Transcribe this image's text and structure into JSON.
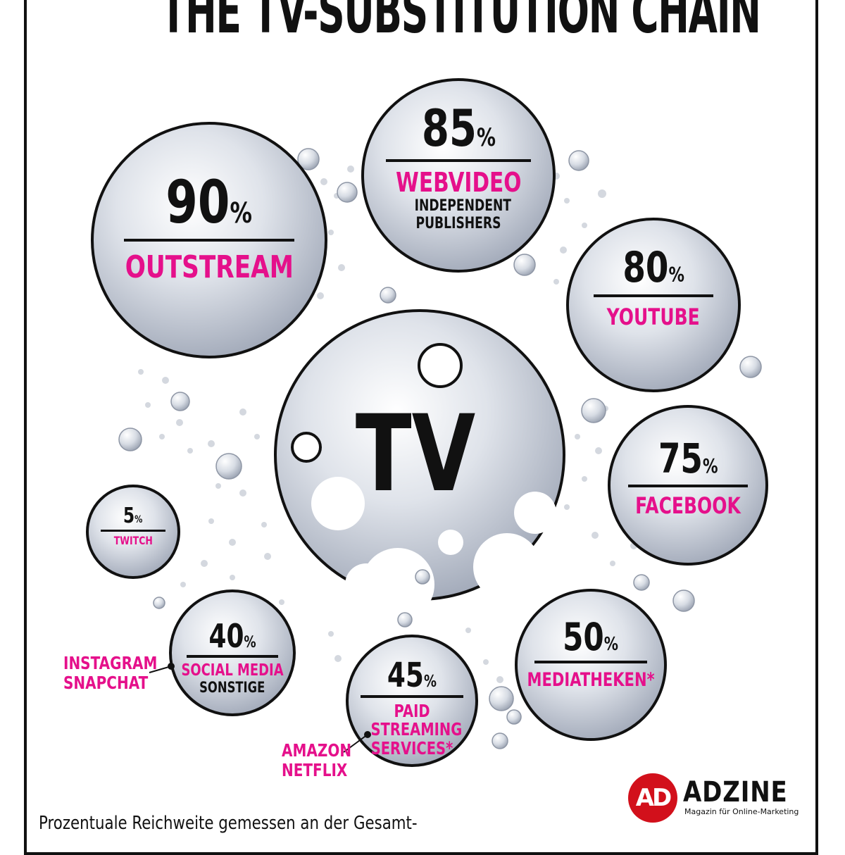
{
  "title": "THE TV-SUBSTITUTION CHAIN",
  "center_label": "TV",
  "bubbles": [
    {
      "id": "outstream",
      "value": "90",
      "unit": "%",
      "label": "OUTSTREAM",
      "sub": ""
    },
    {
      "id": "webvideo",
      "value": "85",
      "unit": "%",
      "label": "WEBVIDEO",
      "sub": "INDEPENDENT PUBLISHERS"
    },
    {
      "id": "youtube",
      "value": "80",
      "unit": "%",
      "label": "YOUTUBE",
      "sub": ""
    },
    {
      "id": "facebook",
      "value": "75",
      "unit": "%",
      "label": "FACEBOOK",
      "sub": ""
    },
    {
      "id": "mediatheken",
      "value": "50",
      "unit": "%",
      "label": "MEDIATHEKEN*",
      "sub": ""
    },
    {
      "id": "paid",
      "value": "45",
      "unit": "%",
      "label": "PAID STREAMING SERVICES*",
      "sub": ""
    },
    {
      "id": "social",
      "value": "40",
      "unit": "%",
      "label": "SOCIAL MEDIA",
      "sub": "SONSTIGE"
    },
    {
      "id": "twitch",
      "value": "5",
      "unit": "%",
      "label": "TWITCH",
      "sub": ""
    }
  ],
  "callouts": {
    "social": "INSTAGRAM SNAPCHAT",
    "paid": "AMAZON NETFLIX"
  },
  "logo": {
    "mark": "AD",
    "name": "ADZINE",
    "tagline": "Magazin für Online-Marketing"
  },
  "footer": "Prozentuale Reichweite gemessen an der Gesamt-",
  "colors": {
    "accent": "#e5108b",
    "bubble": "#c4cad6",
    "outline": "#111111",
    "logo": "#d2101b"
  }
}
